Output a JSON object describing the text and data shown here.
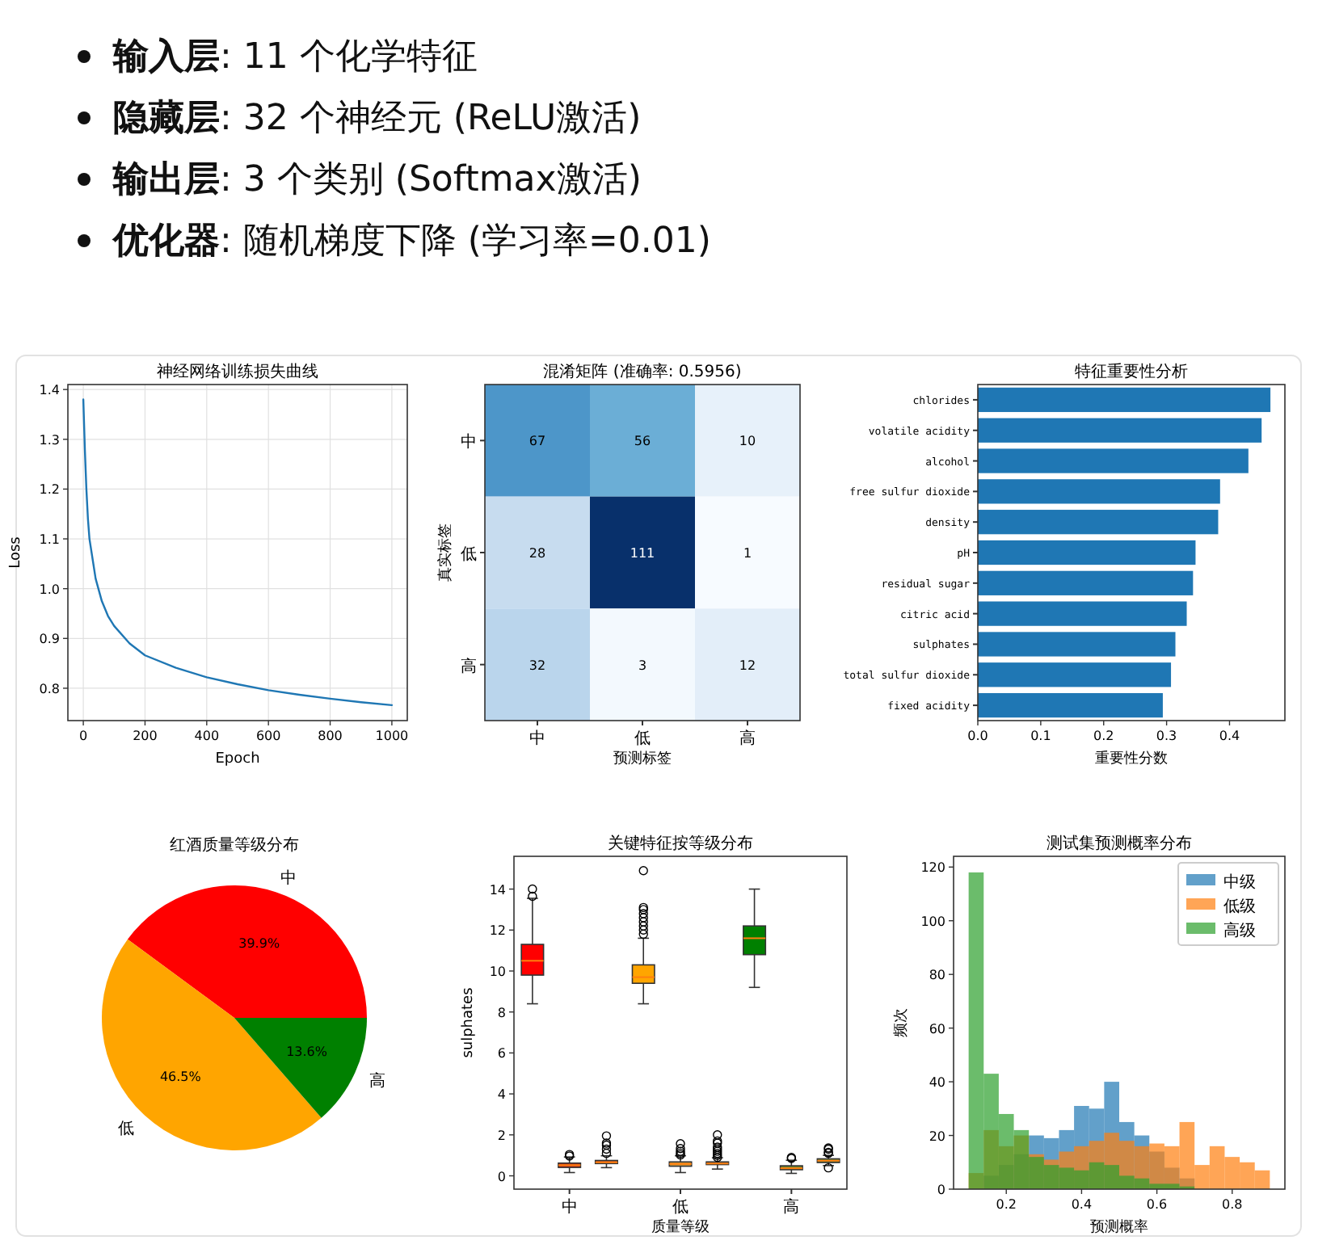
{
  "chart_data": [
    {
      "type": "other",
      "annotations": [
        "**输入层**: 11 个化学特征",
        "**隐藏层**: 32 个神经元 (ReLU激活)",
        "**输出层**: 3 个类别 (Softmax激活)",
        "**优化器**: 随机梯度下降 (学习率=0.01)"
      ]
    },
    {
      "type": "line",
      "title": "神经网络训练损失曲线",
      "xlabel": "Epoch",
      "ylabel": "Loss",
      "color": "#1f77b4",
      "grid": true,
      "x": [
        0,
        5,
        10,
        15,
        20,
        30,
        40,
        60,
        80,
        100,
        150,
        200,
        300,
        400,
        500,
        600,
        700,
        800,
        900,
        1000
      ],
      "values": [
        1.38,
        1.28,
        1.2,
        1.14,
        1.1,
        1.06,
        1.02,
        0.975,
        0.945,
        0.925,
        0.89,
        0.866,
        0.841,
        0.822,
        0.808,
        0.796,
        0.787,
        0.779,
        0.772,
        0.766
      ],
      "xlim": [
        -50,
        1050
      ],
      "ylim": [
        0.735,
        1.41
      ],
      "xticks": [
        0,
        200,
        400,
        600,
        800,
        1000
      ],
      "yticks": [
        0.8,
        0.9,
        {
          "value": 1,
          "label": "1.0"
        },
        1.1,
        1.2,
        1.3,
        1.4
      ]
    },
    {
      "type": "heatmap",
      "title": "混淆矩阵 (准确率: 0.5956)",
      "xlabel": "预测标签",
      "ylabel": "真实标签",
      "categories": [
        "中",
        "低",
        "高"
      ],
      "y_categories": [
        "中",
        "低",
        "高"
      ],
      "cells": [
        [
          67,
          56,
          10
        ],
        [
          28,
          111,
          1
        ],
        [
          32,
          3,
          12
        ]
      ],
      "data_labels": true
    },
    {
      "type": "bar",
      "orientation": "horizontal",
      "title": "特征重要性分析",
      "xlabel": "重要性分数",
      "color": "#1f77b4",
      "categories": [
        "chlorides",
        "volatile acidity",
        "alcohol",
        "free sulfur dioxide",
        "density",
        "pH",
        "residual sugar",
        "citric acid",
        "sulphates",
        "total sulfur dioxide",
        "fixed acidity"
      ],
      "values": [
        0.465,
        0.451,
        0.43,
        0.385,
        0.382,
        0.346,
        0.342,
        0.332,
        0.314,
        0.307,
        0.294
      ],
      "xlim": [
        0,
        0.488
      ],
      "xticks": [
        {
          "value": 0,
          "label": "0.0"
        },
        0.1,
        0.2,
        0.3,
        0.4
      ]
    },
    {
      "type": "pie",
      "title": "红酒质量等级分布",
      "categories": [
        "中",
        "低",
        "高"
      ],
      "values": [
        39.9,
        46.5,
        13.6
      ],
      "colors": [
        "#ff0000",
        "#ffa500",
        "#008000"
      ],
      "value_labels": [
        "39.9%",
        "46.5%",
        "13.6%"
      ]
    },
    {
      "type": "box",
      "title": "关键特征按等级分布",
      "xlabel": "质量等级",
      "ylabel": "sulphates",
      "categories": [
        "中",
        "低",
        "高"
      ],
      "ylim": [
        -0.65,
        15.6
      ],
      "yticks": [
        0,
        2,
        4,
        6,
        8,
        10,
        12,
        14
      ],
      "series": [
        {
          "colors": [
            "#ff0000",
            "#ffa500",
            "#008000"
          ],
          "boxes": [
            {
              "low": 8.4,
              "q1": 9.8,
              "median": 10.5,
              "q3": 11.3,
              "high": 13.55,
              "outliers": [
                13.65,
                14.0
              ]
            },
            {
              "low": 8.4,
              "q1": 9.4,
              "median": 9.7,
              "q3": 10.3,
              "high": 11.6,
              "outliers": [
                11.8,
                12.0,
                12.2,
                12.4,
                12.6,
                12.8,
                13.0,
                13.1,
                14.9
              ]
            },
            {
              "low": 9.2,
              "q1": 10.8,
              "median": 11.6,
              "q3": 12.2,
              "high": 14.0
            }
          ]
        },
        {
          "colors": [
            "#d2361e",
            "#d9a441",
            "#6f8a2a"
          ],
          "boxes": [
            {
              "low": 0.16,
              "q1": 0.41,
              "median": 0.52,
              "q3": 0.62,
              "high": 0.92,
              "outliers": [
                0.97,
                1.04
              ]
            },
            {
              "low": 0.16,
              "q1": 0.47,
              "median": 0.58,
              "q3": 0.68,
              "high": 0.98,
              "outliers": [
                1.02,
                1.1,
                1.2,
                1.33,
                1.57
              ]
            },
            {
              "low": 0.12,
              "q1": 0.3,
              "median": 0.37,
              "q3": 0.49,
              "high": 0.76,
              "outliers": [
                0.85,
                0.9
              ]
            }
          ]
        },
        {
          "colors": [
            "#c8552a",
            "#b07a48",
            "#6b8e3a"
          ],
          "boxes": [
            {
              "low": 0.4,
              "q1": 0.6,
              "median": 0.66,
              "q3": 0.75,
              "high": 0.98,
              "outliers": [
                1.1,
                1.3,
                1.5,
                1.6,
                1.95
              ]
            },
            {
              "low": 0.33,
              "q1": 0.55,
              "median": 0.6,
              "q3": 0.68,
              "high": 0.88,
              "outliers": [
                0.9,
                1.0,
                1.1,
                1.2,
                1.3,
                1.4,
                1.6,
                1.7,
                2.0
              ]
            },
            {
              "low": 0.5,
              "q1": 0.65,
              "median": 0.74,
              "q3": 0.83,
              "high": 1.0,
              "outliers": [
                0.39,
                1.1,
                1.15,
                1.3,
                1.36
              ]
            }
          ]
        }
      ]
    },
    {
      "type": "histogram",
      "title": "测试集预测概率分布",
      "xlabel": "预测概率",
      "ylabel": "频次",
      "legend": "top right",
      "xlim": [
        0.06,
        0.94
      ],
      "xticks": [
        0.2,
        0.4,
        0.6,
        0.8
      ],
      "ylim": [
        0,
        124
      ],
      "yticks": [
        0,
        20,
        40,
        60,
        80,
        100,
        120
      ],
      "bins": [
        0.1,
        0.14,
        0.18,
        0.22,
        0.26,
        0.3,
        0.34,
        0.38,
        0.42,
        0.46,
        0.5,
        0.54,
        0.58,
        0.62,
        0.66,
        0.7,
        0.74,
        0.78,
        0.82,
        0.86,
        0.9
      ],
      "series": [
        {
          "name": "中级",
          "color": "#1f77b4",
          "values": [
            null,
            5,
            9,
            13,
            20,
            19,
            22,
            31,
            30,
            40,
            25,
            20,
            14,
            8,
            4,
            null,
            null,
            0,
            0,
            0
          ]
        },
        {
          "name": "低级",
          "color": "#ff7f0e",
          "values": [
            6,
            22,
            16,
            20,
            13,
            11,
            14,
            16,
            18,
            21,
            18,
            16,
            17,
            16,
            25,
            9,
            16,
            12,
            10,
            7
          ]
        },
        {
          "name": "高级",
          "color": "#2ca02c",
          "values": [
            118,
            43,
            28,
            22,
            12,
            9,
            8,
            7,
            10,
            9,
            5,
            4,
            2,
            2,
            1,
            0,
            0,
            0,
            0,
            0
          ]
        }
      ]
    }
  ]
}
